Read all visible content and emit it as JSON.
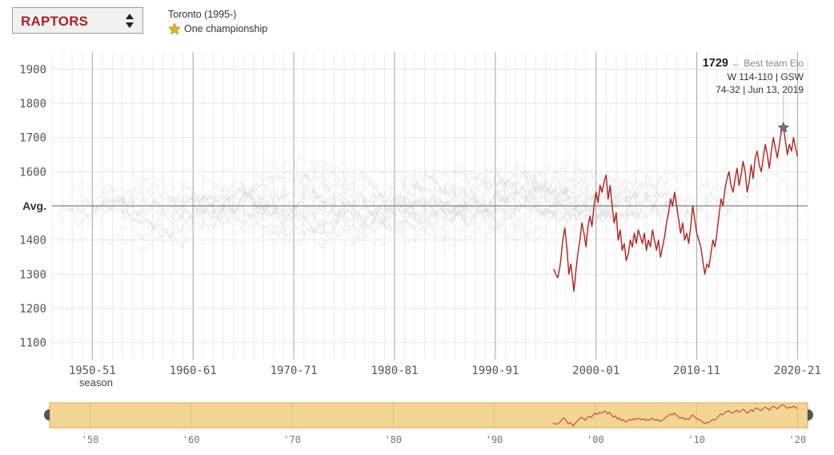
{
  "header": {
    "team_select": {
      "value": "RAPTORS"
    },
    "team_info": {
      "history": "Toronto (1995-)",
      "championships": "One championship"
    }
  },
  "colors": {
    "accent": "#b1201f",
    "background_lines": "#9e9e9e",
    "brush": "#f3d596",
    "brush_border": "#e2a832",
    "star": "#8a6a80",
    "legend_star": "#e6b422"
  },
  "chart_data": {
    "type": "line",
    "ylabel": "",
    "xlabel": "season",
    "xlim": [
      1946,
      2021
    ],
    "ylim": [
      1050,
      1950
    ],
    "grid": true,
    "average_line": {
      "value": 1500,
      "label": "Avg."
    },
    "y_ticks": [
      1100,
      1200,
      1300,
      1400,
      1500,
      1600,
      1700,
      1800,
      1900
    ],
    "y_tick_labels": [
      "1100",
      "1200",
      "1300",
      "1400",
      "Avg.",
      "1600",
      "1700",
      "1800",
      "1900"
    ],
    "x_ticks": [
      1950,
      1960,
      1970,
      1980,
      1990,
      2000,
      2010,
      2020
    ],
    "x_tick_labels": [
      "1950-51",
      "1960-61",
      "1970-71",
      "1980-81",
      "1990-91",
      "2000-01",
      "2010-11",
      "2020-21"
    ],
    "series": [
      {
        "name": "RAPTORS",
        "points": [
          [
            1995.8,
            1315
          ],
          [
            1996.0,
            1300
          ],
          [
            1996.2,
            1290
          ],
          [
            1996.4,
            1320
          ],
          [
            1996.5,
            1340
          ],
          [
            1996.7,
            1400
          ],
          [
            1996.9,
            1435
          ],
          [
            1997.1,
            1380
          ],
          [
            1997.3,
            1300
          ],
          [
            1997.5,
            1330
          ],
          [
            1997.7,
            1280
          ],
          [
            1997.8,
            1250
          ],
          [
            1998.0,
            1310
          ],
          [
            1998.2,
            1360
          ],
          [
            1998.4,
            1400
          ],
          [
            1998.6,
            1450
          ],
          [
            1998.8,
            1420
          ],
          [
            1999.0,
            1380
          ],
          [
            1999.2,
            1440
          ],
          [
            1999.4,
            1470
          ],
          [
            1999.6,
            1440
          ],
          [
            1999.8,
            1500
          ],
          [
            2000.0,
            1540
          ],
          [
            2000.2,
            1510
          ],
          [
            2000.4,
            1560
          ],
          [
            2000.6,
            1540
          ],
          [
            2000.8,
            1570
          ],
          [
            2001.0,
            1590
          ],
          [
            2001.2,
            1520
          ],
          [
            2001.4,
            1560
          ],
          [
            2001.6,
            1500
          ],
          [
            2001.8,
            1450
          ],
          [
            2002.0,
            1480
          ],
          [
            2002.2,
            1400
          ],
          [
            2002.4,
            1430
          ],
          [
            2002.6,
            1370
          ],
          [
            2002.8,
            1390
          ],
          [
            2003.0,
            1340
          ],
          [
            2003.2,
            1360
          ],
          [
            2003.4,
            1400
          ],
          [
            2003.6,
            1380
          ],
          [
            2003.8,
            1420
          ],
          [
            2004.0,
            1390
          ],
          [
            2004.2,
            1430
          ],
          [
            2004.4,
            1410
          ],
          [
            2004.6,
            1390
          ],
          [
            2004.8,
            1420
          ],
          [
            2005.0,
            1370
          ],
          [
            2005.2,
            1400
          ],
          [
            2005.4,
            1380
          ],
          [
            2005.6,
            1430
          ],
          [
            2005.8,
            1400
          ],
          [
            2006.0,
            1370
          ],
          [
            2006.2,
            1400
          ],
          [
            2006.4,
            1350
          ],
          [
            2006.6,
            1380
          ],
          [
            2006.8,
            1410
          ],
          [
            2007.0,
            1450
          ],
          [
            2007.2,
            1480
          ],
          [
            2007.4,
            1520
          ],
          [
            2007.6,
            1500
          ],
          [
            2007.8,
            1540
          ],
          [
            2008.0,
            1500
          ],
          [
            2008.2,
            1460
          ],
          [
            2008.4,
            1420
          ],
          [
            2008.6,
            1450
          ],
          [
            2008.8,
            1400
          ],
          [
            2009.0,
            1420
          ],
          [
            2009.2,
            1390
          ],
          [
            2009.4,
            1440
          ],
          [
            2009.6,
            1500
          ],
          [
            2009.8,
            1460
          ],
          [
            2010.0,
            1420
          ],
          [
            2010.2,
            1400
          ],
          [
            2010.4,
            1380
          ],
          [
            2010.6,
            1340
          ],
          [
            2010.8,
            1300
          ],
          [
            2011.0,
            1330
          ],
          [
            2011.2,
            1320
          ],
          [
            2011.4,
            1360
          ],
          [
            2011.6,
            1400
          ],
          [
            2011.8,
            1380
          ],
          [
            2012.0,
            1420
          ],
          [
            2012.2,
            1470
          ],
          [
            2012.4,
            1520
          ],
          [
            2012.6,
            1500
          ],
          [
            2012.8,
            1550
          ],
          [
            2013.0,
            1580
          ],
          [
            2013.2,
            1600
          ],
          [
            2013.4,
            1560
          ],
          [
            2013.6,
            1540
          ],
          [
            2013.8,
            1580
          ],
          [
            2014.0,
            1610
          ],
          [
            2014.2,
            1560
          ],
          [
            2014.4,
            1590
          ],
          [
            2014.6,
            1630
          ],
          [
            2014.8,
            1600
          ],
          [
            2015.0,
            1540
          ],
          [
            2015.2,
            1570
          ],
          [
            2015.4,
            1620
          ],
          [
            2015.6,
            1580
          ],
          [
            2015.8,
            1640
          ],
          [
            2016.0,
            1660
          ],
          [
            2016.2,
            1620
          ],
          [
            2016.4,
            1600
          ],
          [
            2016.6,
            1640
          ],
          [
            2016.8,
            1680
          ],
          [
            2017.0,
            1650
          ],
          [
            2017.2,
            1610
          ],
          [
            2017.4,
            1660
          ],
          [
            2017.6,
            1700
          ],
          [
            2017.8,
            1670
          ],
          [
            2018.0,
            1640
          ],
          [
            2018.2,
            1680
          ],
          [
            2018.4,
            1720
          ],
          [
            2018.6,
            1729
          ],
          [
            2018.8,
            1690
          ],
          [
            2019.0,
            1650
          ],
          [
            2019.2,
            1680
          ],
          [
            2019.4,
            1660
          ],
          [
            2019.6,
            1700
          ],
          [
            2019.8,
            1670
          ],
          [
            2020.0,
            1645
          ]
        ]
      }
    ],
    "annotation": {
      "value": "1729",
      "label": "← Best team Elo",
      "line1": "W 114-110 | GSW",
      "line2": "74-32 | Jun 13, 2019",
      "x": 2018.6,
      "y": 1729
    },
    "brush": {
      "range": [
        1946,
        2021
      ],
      "tick_values": [
        1950,
        1960,
        1970,
        1980,
        1990,
        2000,
        2010,
        2020
      ],
      "tick_labels": [
        "'50",
        "'60",
        "'70",
        "'80",
        "'90",
        "'00",
        "'10",
        "'20"
      ]
    }
  }
}
